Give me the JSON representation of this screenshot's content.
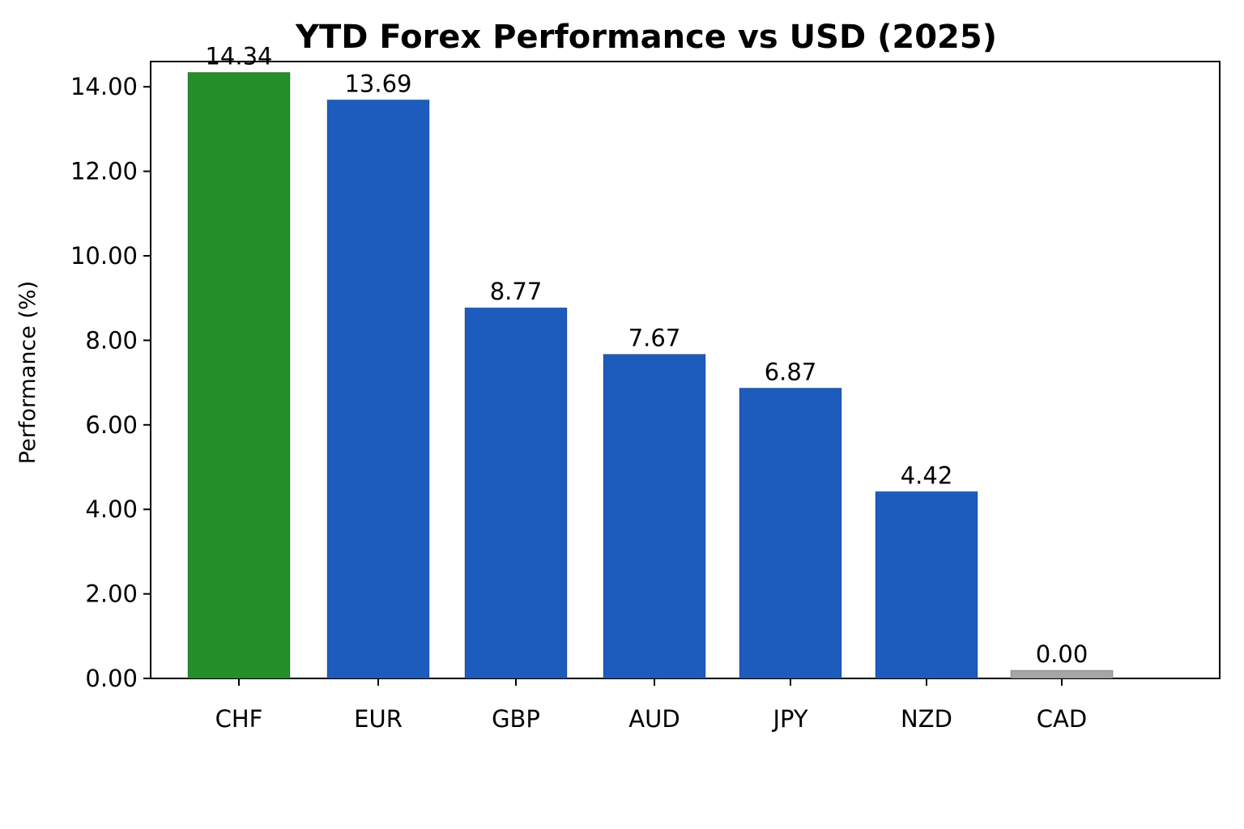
{
  "chart_data": {
    "type": "bar",
    "title": "YTD Forex Performance vs USD (2025)",
    "xlabel": "",
    "ylabel": "Performance (%)",
    "ylim": [
      0,
      14.5
    ],
    "yticks": [
      "0.00",
      "2.00",
      "4.00",
      "6.00",
      "8.00",
      "10.00",
      "12.00",
      "14.00"
    ],
    "ytick_values": [
      0,
      2,
      4,
      6,
      8,
      10,
      12,
      14
    ],
    "grid": false,
    "legend": "none",
    "categories": [
      "CHF",
      "EUR",
      "GBP",
      "AUD",
      "JPY",
      "NZD",
      "CAD"
    ],
    "values": [
      14.34,
      13.69,
      8.77,
      7.67,
      6.87,
      4.42,
      0.0
    ],
    "data_labels": [
      "14.34",
      "13.69",
      "8.77",
      "7.67",
      "6.87",
      "4.42",
      "0.00"
    ],
    "colors": {
      "leader": "#248f29",
      "default": "#1d5cbd",
      "zero": "#a6a6a6",
      "axis": "#000000"
    }
  }
}
